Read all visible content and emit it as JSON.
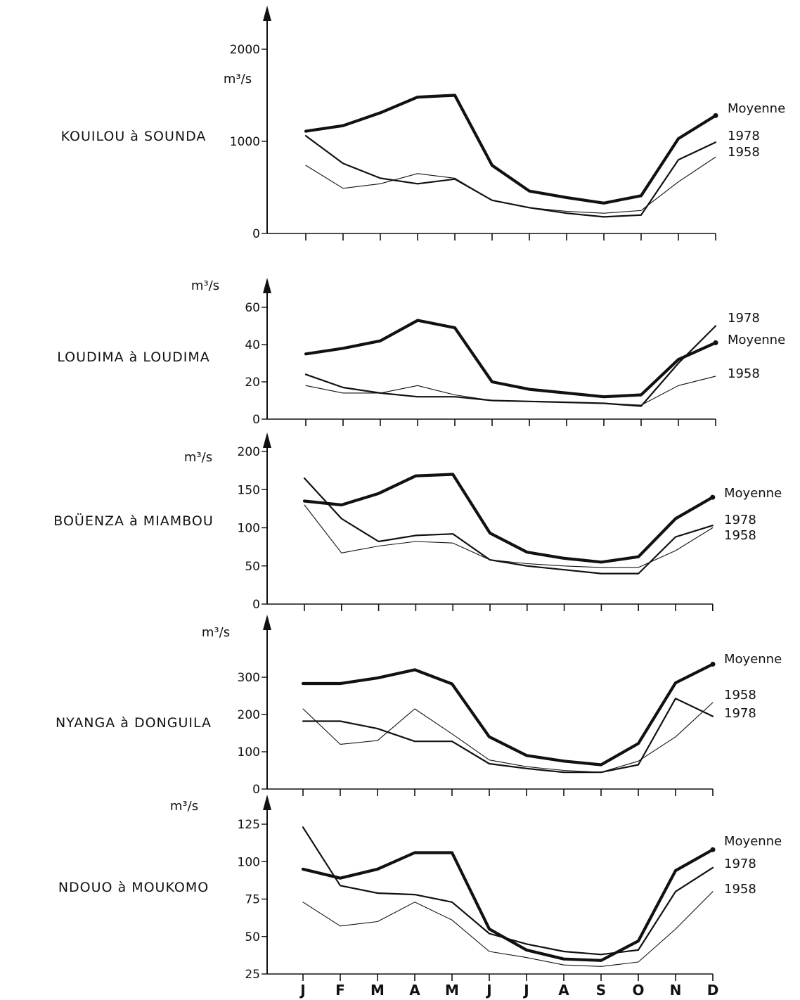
{
  "chart_data": [
    {
      "type": "line",
      "station": "KOUILOU à SOUNDA",
      "unit": "m³/s",
      "yticks": [
        0,
        1000,
        2000
      ],
      "yticklabels": [
        "0",
        "1000",
        "2000"
      ],
      "ylim": [
        0,
        2400
      ],
      "grid": false,
      "series": [
        {
          "name": "Moyenne",
          "style": "bold",
          "values": [
            1110,
            1170,
            1310,
            1480,
            1500,
            740,
            460,
            390,
            330,
            410,
            1030,
            1280
          ]
        },
        {
          "name": "1978",
          "style": "medium",
          "values": [
            1060,
            760,
            600,
            540,
            590,
            360,
            280,
            220,
            180,
            200,
            800,
            990
          ]
        },
        {
          "name": "1958",
          "style": "thin",
          "values": [
            740,
            490,
            540,
            650,
            600,
            360,
            280,
            240,
            220,
            250,
            560,
            830
          ]
        }
      ]
    },
    {
      "type": "line",
      "station": "LOUDIMA à LOUDIMA",
      "unit": "m³/s",
      "yticks": [
        0,
        20,
        40,
        60
      ],
      "yticklabels": [
        "0",
        "20",
        "40",
        "60"
      ],
      "ylim": [
        0,
        70
      ],
      "grid": false,
      "series": [
        {
          "name": "1978",
          "style": "medium",
          "values": [
            24,
            17,
            14,
            12,
            12,
            10,
            9.5,
            9,
            8.5,
            7,
            30,
            50
          ]
        },
        {
          "name": "Moyenne",
          "style": "bold",
          "values": [
            35,
            38,
            42,
            53,
            49,
            20,
            16,
            14,
            12,
            13,
            32,
            41
          ]
        },
        {
          "name": "1958",
          "style": "thin",
          "values": [
            18,
            14,
            14,
            18,
            13,
            10,
            9.5,
            9,
            8.5,
            7.5,
            18,
            23
          ]
        }
      ]
    },
    {
      "type": "line",
      "station": "BOÜENZA à MIAMBOU",
      "unit": "m³/s",
      "yticks": [
        0,
        50,
        100,
        150,
        200
      ],
      "yticklabels": [
        "0",
        "50",
        "100",
        "150",
        "200"
      ],
      "ylim": [
        0,
        220
      ],
      "grid": false,
      "series": [
        {
          "name": "Moyenne",
          "style": "bold",
          "values": [
            135,
            130,
            145,
            168,
            170,
            93,
            68,
            60,
            55,
            62,
            112,
            140
          ]
        },
        {
          "name": "1978",
          "style": "medium",
          "values": [
            165,
            112,
            82,
            90,
            92,
            58,
            50,
            45,
            40,
            40,
            88,
            103
          ]
        },
        {
          "name": "1958",
          "style": "thin",
          "values": [
            130,
            67,
            76,
            82,
            80,
            58,
            53,
            50,
            48,
            48,
            70,
            100
          ]
        }
      ]
    },
    {
      "type": "line",
      "station": "NYANGA à DONGUILA",
      "unit": "m³/s",
      "yticks": [
        0,
        100,
        200,
        300
      ],
      "yticklabels": [
        "0",
        "100",
        "200",
        "300"
      ],
      "ylim": [
        0,
        450
      ],
      "grid": false,
      "series": [
        {
          "name": "Moyenne",
          "style": "bold",
          "values": [
            283,
            283,
            298,
            320,
            282,
            140,
            90,
            75,
            65,
            122,
            285,
            335
          ]
        },
        {
          "name": "1958",
          "style": "thin",
          "values": [
            215,
            120,
            130,
            215,
            148,
            78,
            60,
            50,
            45,
            75,
            140,
            232
          ]
        },
        {
          "name": "1978",
          "style": "medium",
          "values": [
            182,
            182,
            162,
            128,
            128,
            68,
            55,
            45,
            45,
            65,
            243,
            195
          ]
        }
      ]
    },
    {
      "type": "line",
      "station": "NDOUO à MOUKOMO",
      "unit": "m³/s",
      "yticks": [
        25,
        50,
        75,
        100,
        125
      ],
      "yticklabels": [
        "25",
        "50",
        "75",
        "100",
        "125"
      ],
      "ylim": [
        25,
        135
      ],
      "grid": false,
      "series": [
        {
          "name": "Moyenne",
          "style": "bold",
          "values": [
            95,
            89,
            95,
            106,
            106,
            55,
            41,
            35,
            34,
            47,
            94,
            108
          ]
        },
        {
          "name": "1978",
          "style": "medium",
          "values": [
            123,
            84,
            79,
            78,
            73,
            52,
            45,
            40,
            38,
            41,
            80,
            96
          ]
        },
        {
          "name": "1958",
          "style": "thin",
          "values": [
            73,
            57,
            60,
            73,
            61,
            40,
            36,
            31,
            30,
            33,
            55,
            80
          ]
        }
      ]
    }
  ],
  "months": [
    "J",
    "F",
    "M",
    "A",
    "M",
    "J",
    "J",
    "A",
    "S",
    "O",
    "N",
    "D"
  ]
}
